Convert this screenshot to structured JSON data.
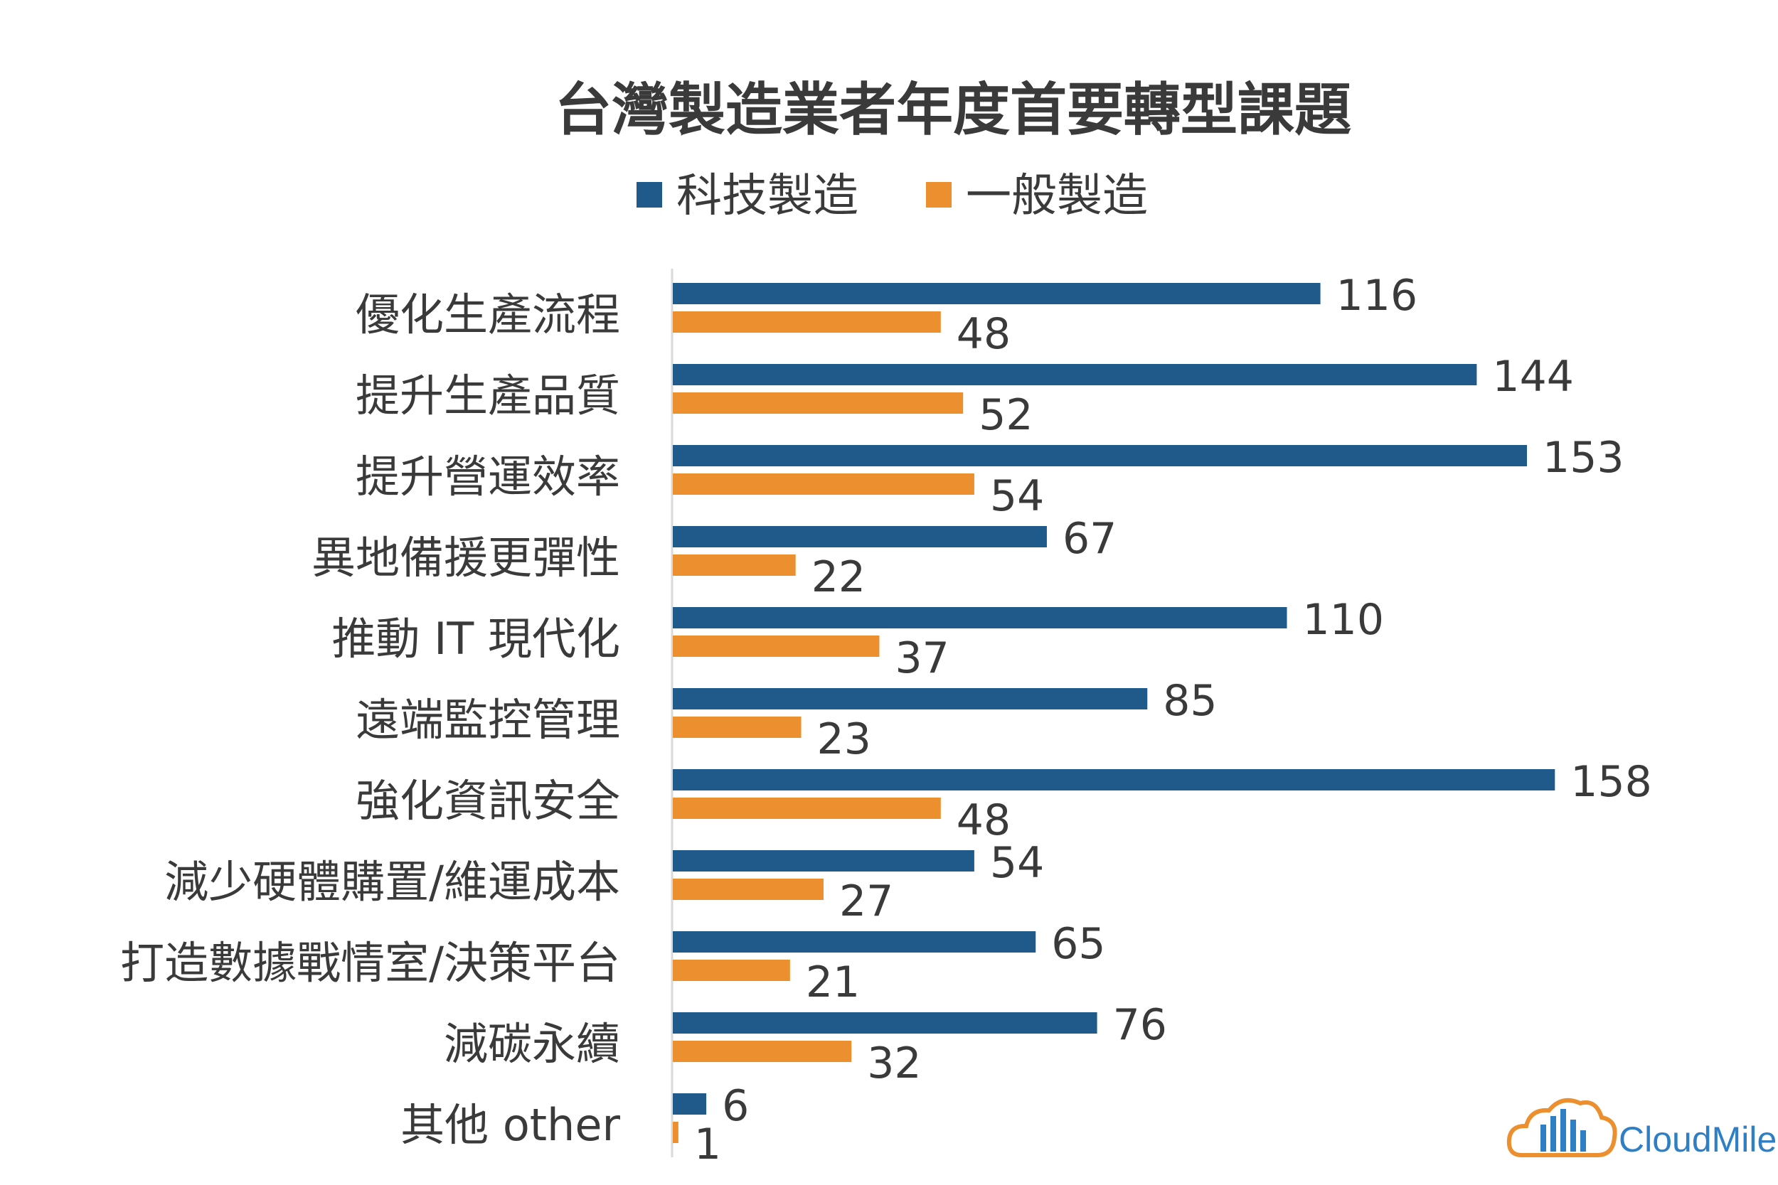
{
  "chart_data": {
    "type": "bar",
    "orientation": "horizontal",
    "title": "台灣製造業者年度首要轉型課題",
    "categories": [
      "優化生產流程",
      "提升生產品質",
      "提升營運效率",
      "異地備援更彈性",
      "推動 IT 現代化",
      "遠端監控管理",
      "強化資訊安全",
      "減少硬體購置/維運成本",
      "打造數據戰情室/決策平台",
      "減碳永續",
      "其他 other"
    ],
    "series": [
      {
        "name": "科技製造",
        "color": "#1f5a8a",
        "values": [
          116,
          144,
          153,
          67,
          110,
          85,
          158,
          54,
          65,
          76,
          6
        ]
      },
      {
        "name": "一般製造",
        "color": "#ec8f2f",
        "values": [
          48,
          52,
          54,
          22,
          37,
          23,
          48,
          27,
          21,
          32,
          1
        ]
      }
    ],
    "xlim": [
      0,
      160
    ],
    "legend_position": "top-center",
    "grid": false
  },
  "logo": {
    "text": "CloudMile",
    "icon": "cloud-city-icon",
    "color": "#2f7fc4",
    "accent": "#ec8f2f"
  }
}
